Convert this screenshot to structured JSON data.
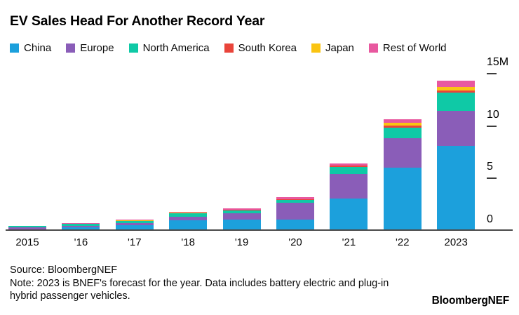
{
  "title": "EV Sales Head For Another Record Year",
  "legend": [
    {
      "label": "China",
      "color": "#1ca0dc"
    },
    {
      "label": "Europe",
      "color": "#8a5db8"
    },
    {
      "label": "North America",
      "color": "#0fc9a6"
    },
    {
      "label": "South Korea",
      "color": "#e9443a"
    },
    {
      "label": "Japan",
      "color": "#fac412"
    },
    {
      "label": "Rest of World",
      "color": "#e8589f"
    }
  ],
  "chart_data": {
    "type": "bar",
    "stacked": true,
    "title": "EV Sales Head For Another Record Year",
    "categories": [
      "2015",
      "'16",
      "'17",
      "'18",
      "'19",
      "'20",
      "'21",
      "'22",
      "2023"
    ],
    "series": [
      {
        "name": "China",
        "color": "#1ca0dc",
        "values": [
          0.15,
          0.33,
          0.55,
          1.0,
          1.06,
          1.1,
          3.07,
          6.01,
          8.1
        ]
      },
      {
        "name": "Europe",
        "color": "#8a5db8",
        "values": [
          0.16,
          0.16,
          0.22,
          0.34,
          0.61,
          1.58,
          2.33,
          2.83,
          3.35
        ]
      },
      {
        "name": "North America",
        "color": "#0fc9a6",
        "values": [
          0.14,
          0.18,
          0.18,
          0.34,
          0.29,
          0.27,
          0.68,
          1.04,
          1.75
        ]
      },
      {
        "name": "South Korea",
        "color": "#e9443a",
        "values": [
          0.01,
          0.01,
          0.02,
          0.03,
          0.03,
          0.05,
          0.12,
          0.18,
          0.22
        ]
      },
      {
        "name": "Japan",
        "color": "#fac412",
        "values": [
          0.01,
          0.02,
          0.06,
          0.06,
          0.04,
          0.04,
          0.05,
          0.23,
          0.29
        ]
      },
      {
        "name": "Rest of World",
        "color": "#e8589f",
        "values": [
          0.01,
          0.01,
          0.02,
          0.04,
          0.09,
          0.16,
          0.21,
          0.34,
          0.61
        ]
      }
    ],
    "unit": "million vehicles",
    "ylim": [
      0,
      15
    ],
    "yticks": [
      {
        "label": "15M",
        "value": 15
      },
      {
        "label": "10",
        "value": 10
      },
      {
        "label": "5",
        "value": 5
      },
      {
        "label": "0",
        "value": 0
      }
    ],
    "legend_position": "top",
    "grid": false
  },
  "footer": {
    "source": "Source: BloombergNEF",
    "note": "Note: 2023 is BNEF's forecast for the year. Data includes battery electric and plug-in hybrid passenger vehicles.",
    "brand": "BloombergNEF"
  }
}
